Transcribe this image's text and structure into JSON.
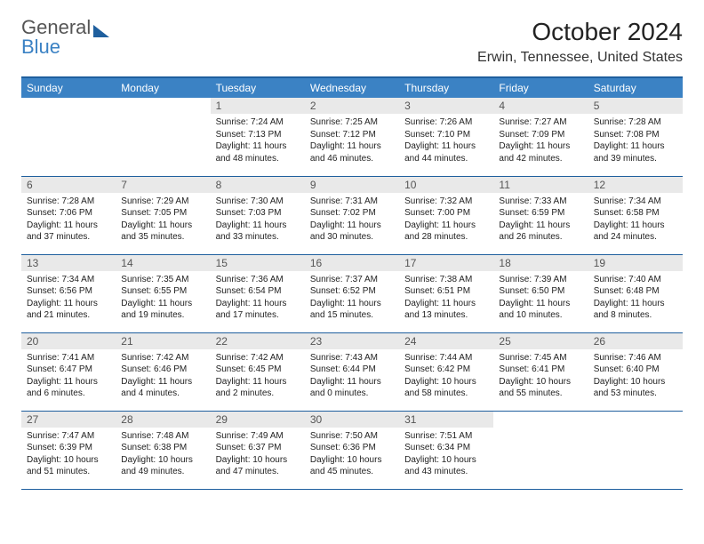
{
  "brand": {
    "part1": "General",
    "part2": "Blue"
  },
  "title": {
    "month": "October 2024",
    "location": "Erwin, Tennessee, United States"
  },
  "colors": {
    "header_bg": "#3b82c4",
    "border": "#1f5f9e",
    "daynum_bg": "#e9e9e9",
    "text": "#222222"
  },
  "calendar": {
    "day_names": [
      "Sunday",
      "Monday",
      "Tuesday",
      "Wednesday",
      "Thursday",
      "Friday",
      "Saturday"
    ],
    "weeks": [
      [
        null,
        null,
        {
          "n": "1",
          "sr": "Sunrise: 7:24 AM",
          "ss": "Sunset: 7:13 PM",
          "dl": "Daylight: 11 hours and 48 minutes."
        },
        {
          "n": "2",
          "sr": "Sunrise: 7:25 AM",
          "ss": "Sunset: 7:12 PM",
          "dl": "Daylight: 11 hours and 46 minutes."
        },
        {
          "n": "3",
          "sr": "Sunrise: 7:26 AM",
          "ss": "Sunset: 7:10 PM",
          "dl": "Daylight: 11 hours and 44 minutes."
        },
        {
          "n": "4",
          "sr": "Sunrise: 7:27 AM",
          "ss": "Sunset: 7:09 PM",
          "dl": "Daylight: 11 hours and 42 minutes."
        },
        {
          "n": "5",
          "sr": "Sunrise: 7:28 AM",
          "ss": "Sunset: 7:08 PM",
          "dl": "Daylight: 11 hours and 39 minutes."
        }
      ],
      [
        {
          "n": "6",
          "sr": "Sunrise: 7:28 AM",
          "ss": "Sunset: 7:06 PM",
          "dl": "Daylight: 11 hours and 37 minutes."
        },
        {
          "n": "7",
          "sr": "Sunrise: 7:29 AM",
          "ss": "Sunset: 7:05 PM",
          "dl": "Daylight: 11 hours and 35 minutes."
        },
        {
          "n": "8",
          "sr": "Sunrise: 7:30 AM",
          "ss": "Sunset: 7:03 PM",
          "dl": "Daylight: 11 hours and 33 minutes."
        },
        {
          "n": "9",
          "sr": "Sunrise: 7:31 AM",
          "ss": "Sunset: 7:02 PM",
          "dl": "Daylight: 11 hours and 30 minutes."
        },
        {
          "n": "10",
          "sr": "Sunrise: 7:32 AM",
          "ss": "Sunset: 7:00 PM",
          "dl": "Daylight: 11 hours and 28 minutes."
        },
        {
          "n": "11",
          "sr": "Sunrise: 7:33 AM",
          "ss": "Sunset: 6:59 PM",
          "dl": "Daylight: 11 hours and 26 minutes."
        },
        {
          "n": "12",
          "sr": "Sunrise: 7:34 AM",
          "ss": "Sunset: 6:58 PM",
          "dl": "Daylight: 11 hours and 24 minutes."
        }
      ],
      [
        {
          "n": "13",
          "sr": "Sunrise: 7:34 AM",
          "ss": "Sunset: 6:56 PM",
          "dl": "Daylight: 11 hours and 21 minutes."
        },
        {
          "n": "14",
          "sr": "Sunrise: 7:35 AM",
          "ss": "Sunset: 6:55 PM",
          "dl": "Daylight: 11 hours and 19 minutes."
        },
        {
          "n": "15",
          "sr": "Sunrise: 7:36 AM",
          "ss": "Sunset: 6:54 PM",
          "dl": "Daylight: 11 hours and 17 minutes."
        },
        {
          "n": "16",
          "sr": "Sunrise: 7:37 AM",
          "ss": "Sunset: 6:52 PM",
          "dl": "Daylight: 11 hours and 15 minutes."
        },
        {
          "n": "17",
          "sr": "Sunrise: 7:38 AM",
          "ss": "Sunset: 6:51 PM",
          "dl": "Daylight: 11 hours and 13 minutes."
        },
        {
          "n": "18",
          "sr": "Sunrise: 7:39 AM",
          "ss": "Sunset: 6:50 PM",
          "dl": "Daylight: 11 hours and 10 minutes."
        },
        {
          "n": "19",
          "sr": "Sunrise: 7:40 AM",
          "ss": "Sunset: 6:48 PM",
          "dl": "Daylight: 11 hours and 8 minutes."
        }
      ],
      [
        {
          "n": "20",
          "sr": "Sunrise: 7:41 AM",
          "ss": "Sunset: 6:47 PM",
          "dl": "Daylight: 11 hours and 6 minutes."
        },
        {
          "n": "21",
          "sr": "Sunrise: 7:42 AM",
          "ss": "Sunset: 6:46 PM",
          "dl": "Daylight: 11 hours and 4 minutes."
        },
        {
          "n": "22",
          "sr": "Sunrise: 7:42 AM",
          "ss": "Sunset: 6:45 PM",
          "dl": "Daylight: 11 hours and 2 minutes."
        },
        {
          "n": "23",
          "sr": "Sunrise: 7:43 AM",
          "ss": "Sunset: 6:44 PM",
          "dl": "Daylight: 11 hours and 0 minutes."
        },
        {
          "n": "24",
          "sr": "Sunrise: 7:44 AM",
          "ss": "Sunset: 6:42 PM",
          "dl": "Daylight: 10 hours and 58 minutes."
        },
        {
          "n": "25",
          "sr": "Sunrise: 7:45 AM",
          "ss": "Sunset: 6:41 PM",
          "dl": "Daylight: 10 hours and 55 minutes."
        },
        {
          "n": "26",
          "sr": "Sunrise: 7:46 AM",
          "ss": "Sunset: 6:40 PM",
          "dl": "Daylight: 10 hours and 53 minutes."
        }
      ],
      [
        {
          "n": "27",
          "sr": "Sunrise: 7:47 AM",
          "ss": "Sunset: 6:39 PM",
          "dl": "Daylight: 10 hours and 51 minutes."
        },
        {
          "n": "28",
          "sr": "Sunrise: 7:48 AM",
          "ss": "Sunset: 6:38 PM",
          "dl": "Daylight: 10 hours and 49 minutes."
        },
        {
          "n": "29",
          "sr": "Sunrise: 7:49 AM",
          "ss": "Sunset: 6:37 PM",
          "dl": "Daylight: 10 hours and 47 minutes."
        },
        {
          "n": "30",
          "sr": "Sunrise: 7:50 AM",
          "ss": "Sunset: 6:36 PM",
          "dl": "Daylight: 10 hours and 45 minutes."
        },
        {
          "n": "31",
          "sr": "Sunrise: 7:51 AM",
          "ss": "Sunset: 6:34 PM",
          "dl": "Daylight: 10 hours and 43 minutes."
        },
        null,
        null
      ]
    ]
  }
}
